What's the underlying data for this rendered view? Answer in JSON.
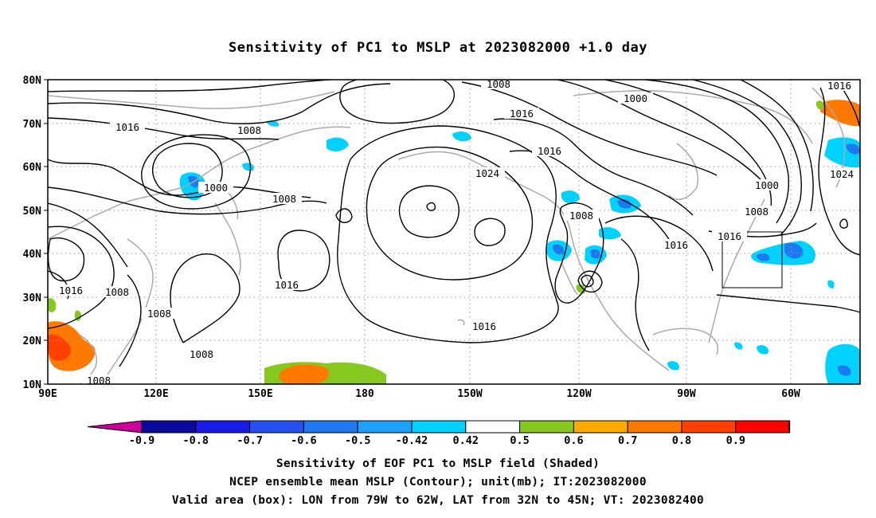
{
  "title": "Sensitivity of PC1 to MSLP at 2023082000 +1.0 day",
  "lat_labels": [
    "80N",
    "70N",
    "60N",
    "50N",
    "40N",
    "30N",
    "20N",
    "10N"
  ],
  "lon_labels": [
    "90E",
    "120E",
    "150E",
    "180",
    "150W",
    "120W",
    "90W",
    "60W"
  ],
  "contour_labels": [
    {
      "text": "1008"
    },
    {
      "text": "1000"
    },
    {
      "text": "1016"
    },
    {
      "text": "1016"
    },
    {
      "text": "1008"
    },
    {
      "text": "1000"
    },
    {
      "text": "1008"
    },
    {
      "text": "1016"
    },
    {
      "text": "1024"
    },
    {
      "text": "1016"
    },
    {
      "text": "1008"
    },
    {
      "text": "1000"
    },
    {
      "text": "1008"
    },
    {
      "text": "1016"
    },
    {
      "text": "1016"
    },
    {
      "text": "1024"
    },
    {
      "text": "1008"
    },
    {
      "text": "1016"
    },
    {
      "text": "1016"
    },
    {
      "text": "1008"
    },
    {
      "text": "1008"
    },
    {
      "text": "1008"
    },
    {
      "text": "1016"
    },
    {
      "text": "1008"
    }
  ],
  "colorbar": {
    "labels": [
      "-0.9",
      "-0.8",
      "-0.7",
      "-0.6",
      "-0.5",
      "-0.42",
      "0.42",
      "0.5",
      "0.6",
      "0.7",
      "0.8",
      "0.9"
    ],
    "colors": [
      "#cc0099",
      "#0a0a9e",
      "#1a1ae6",
      "#2450f0",
      "#1e78f0",
      "#1ea0ff",
      "#00d2ff",
      "#ffffff",
      "#86c81e",
      "#ffaa00",
      "#ff7800",
      "#ff4000",
      "#ff0000",
      "#ff99cc"
    ]
  },
  "box": {
    "lon": [
      -79,
      -62
    ],
    "lat": [
      32,
      45
    ]
  },
  "captions": {
    "line1": "Sensitivity of EOF PC1 to MSLP field (Shaded)",
    "line2": "NCEP ensemble mean MSLP (Contour); unit(mb); IT:2023082000",
    "line3": "Valid area (box): LON from 79W to 62W, LAT from 32N to 45N; VT: 2023082400"
  }
}
